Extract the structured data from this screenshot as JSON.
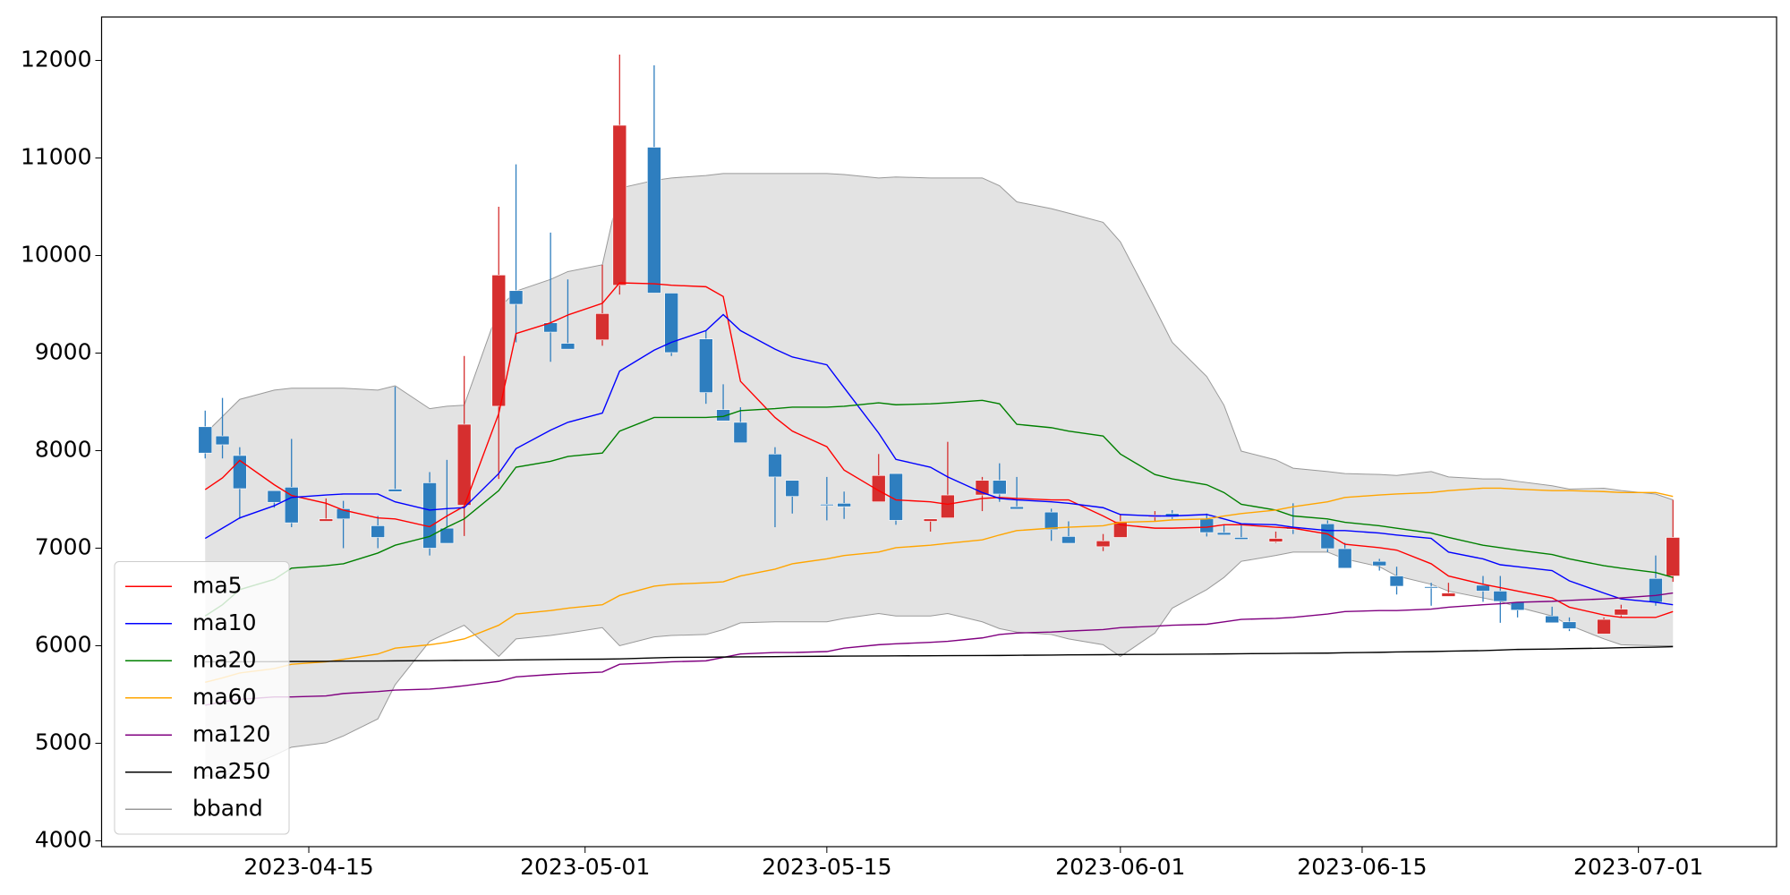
{
  "chart_data": {
    "type": "candlestick",
    "x": [
      "2023-04-09",
      "2023-04-10",
      "2023-04-11",
      "2023-04-13",
      "2023-04-14",
      "2023-04-16",
      "2023-04-17",
      "2023-04-19",
      "2023-04-20",
      "2023-04-22",
      "2023-04-23",
      "2023-04-24",
      "2023-04-26",
      "2023-04-27",
      "2023-04-29",
      "2023-04-30",
      "2023-05-02",
      "2023-05-03",
      "2023-05-05",
      "2023-05-06",
      "2023-05-08",
      "2023-05-09",
      "2023-05-10",
      "2023-05-12",
      "2023-05-13",
      "2023-05-15",
      "2023-05-16",
      "2023-05-18",
      "2023-05-19",
      "2023-05-21",
      "2023-05-22",
      "2023-05-24",
      "2023-05-25",
      "2023-05-26",
      "2023-05-28",
      "2023-05-29",
      "2023-05-31",
      "2023-06-01",
      "2023-06-03",
      "2023-06-04",
      "2023-06-06",
      "2023-06-07",
      "2023-06-08",
      "2023-06-10",
      "2023-06-11",
      "2023-06-13",
      "2023-06-14",
      "2023-06-16",
      "2023-06-17",
      "2023-06-19",
      "2023-06-20",
      "2023-06-22",
      "2023-06-23",
      "2023-06-24",
      "2023-06-26",
      "2023-06-27",
      "2023-06-29",
      "2023-06-30",
      "2023-07-02",
      "2023-07-03"
    ],
    "open": [
      8245,
      8150,
      7950,
      7590,
      7625,
      7275,
      7405,
      7230,
      7605,
      7670,
      7205,
      7440,
      8455,
      9640,
      9310,
      9100,
      9135,
      9695,
      11110,
      9615,
      9145,
      8420,
      8290,
      7965,
      7695,
      7450,
      7460,
      7475,
      7765,
      7275,
      7310,
      7545,
      7695,
      7425,
      7370,
      7120,
      7015,
      7110,
      7320,
      7355,
      7300,
      7160,
      7110,
      7065,
      7210,
      7250,
      6995,
      6865,
      6715,
      6605,
      6505,
      6620,
      6560,
      6445,
      6305,
      6245,
      6120,
      6315,
      6690,
      6715
    ],
    "high": [
      8410,
      8540,
      8035,
      7590,
      8120,
      7510,
      7485,
      7330,
      8655,
      7780,
      7905,
      8970,
      10500,
      10935,
      10235,
      9755,
      9905,
      12060,
      11950,
      9615,
      9230,
      8680,
      8445,
      8035,
      7695,
      7730,
      7580,
      7965,
      7765,
      7300,
      8090,
      7730,
      7870,
      7730,
      7405,
      7275,
      7145,
      7345,
      7380,
      7390,
      7355,
      7240,
      7240,
      7170,
      7460,
      7285,
      7055,
      6890,
      6810,
      6645,
      6645,
      6715,
      6715,
      6445,
      6400,
      6290,
      6290,
      6420,
      6925,
      7495
    ],
    "low": [
      7920,
      7920,
      7300,
      7415,
      7215,
      7275,
      7000,
      7000,
      7580,
      6925,
      7050,
      7125,
      7710,
      9110,
      8910,
      9040,
      9075,
      9600,
      9615,
      8970,
      8480,
      8305,
      8080,
      7215,
      7355,
      7285,
      7300,
      7475,
      7240,
      7170,
      7310,
      7380,
      7475,
      7400,
      7075,
      7050,
      6970,
      7110,
      7280,
      7300,
      7120,
      7135,
      7090,
      7055,
      7145,
      6960,
      6795,
      6770,
      6525,
      6410,
      6505,
      6450,
      6235,
      6290,
      6235,
      6150,
      6120,
      6290,
      6410,
      6655
    ],
    "close": [
      7975,
      8060,
      7610,
      7470,
      7260,
      7300,
      7300,
      7110,
      7580,
      7000,
      7050,
      8270,
      9800,
      9500,
      9215,
      9040,
      9405,
      11335,
      9615,
      9005,
      8595,
      8305,
      8080,
      7730,
      7530,
      7440,
      7425,
      7745,
      7285,
      7300,
      7545,
      7695,
      7555,
      7400,
      7190,
      7050,
      7075,
      7275,
      7340,
      7320,
      7160,
      7135,
      7090,
      7100,
      7195,
      6995,
      6795,
      6820,
      6610,
      6595,
      6540,
      6560,
      6455,
      6365,
      6235,
      6175,
      6270,
      6375,
      6445,
      7110
    ],
    "up_color": "#d62f2f",
    "down_color": "#2e7ebf",
    "series": [
      {
        "name": "ma5",
        "color": "#ff0000",
        "values": [
          7600,
          7720,
          7900,
          7650,
          7540,
          7460,
          7390,
          7310,
          7300,
          7220,
          7330,
          7430,
          8380,
          9200,
          9310,
          9390,
          9510,
          9720,
          9710,
          9695,
          9680,
          9580,
          8710,
          8340,
          8200,
          8040,
          7800,
          7590,
          7495,
          7475,
          7450,
          7510,
          7520,
          7510,
          7495,
          7495,
          7330,
          7240,
          7205,
          7205,
          7215,
          7240,
          7240,
          7215,
          7205,
          7145,
          7040,
          7005,
          6980,
          6840,
          6715,
          6630,
          6595,
          6560,
          6490,
          6395,
          6315,
          6290,
          6290,
          6350
        ]
      },
      {
        "name": "ma10",
        "color": "#0000ff",
        "values": [
          7100,
          7205,
          7310,
          7435,
          7520,
          7545,
          7555,
          7555,
          7475,
          7390,
          7405,
          7415,
          7765,
          8020,
          8210,
          8290,
          8385,
          8815,
          9030,
          9110,
          9230,
          9395,
          9230,
          9040,
          8960,
          8880,
          8645,
          8180,
          7910,
          7830,
          7730,
          7570,
          7510,
          7495,
          7475,
          7460,
          7415,
          7345,
          7330,
          7330,
          7345,
          7300,
          7250,
          7240,
          7215,
          7180,
          7180,
          7155,
          7135,
          7100,
          6960,
          6890,
          6830,
          6810,
          6770,
          6665,
          6540,
          6480,
          6445,
          6420
        ]
      },
      {
        "name": "ma20",
        "color": "#008000",
        "values": [
          6305,
          6420,
          6575,
          6680,
          6795,
          6820,
          6840,
          6950,
          7030,
          7120,
          7215,
          7300,
          7590,
          7830,
          7890,
          7940,
          7975,
          8200,
          8340,
          8340,
          8340,
          8350,
          8410,
          8430,
          8445,
          8445,
          8455,
          8490,
          8470,
          8480,
          8490,
          8515,
          8480,
          8270,
          8235,
          8200,
          8150,
          7965,
          7755,
          7710,
          7650,
          7570,
          7450,
          7390,
          7330,
          7300,
          7265,
          7230,
          7205,
          7155,
          7110,
          7030,
          7005,
          6980,
          6935,
          6890,
          6820,
          6795,
          6750,
          6700
        ]
      },
      {
        "name": "ma60",
        "color": "#ffa500",
        "values": [
          5625,
          5670,
          5720,
          5765,
          5810,
          5835,
          5860,
          5915,
          5975,
          6010,
          6035,
          6070,
          6210,
          6325,
          6360,
          6385,
          6420,
          6515,
          6610,
          6630,
          6645,
          6655,
          6715,
          6785,
          6840,
          6890,
          6925,
          6960,
          7005,
          7030,
          7050,
          7085,
          7135,
          7180,
          7205,
          7215,
          7230,
          7265,
          7275,
          7290,
          7300,
          7330,
          7355,
          7390,
          7425,
          7475,
          7520,
          7545,
          7555,
          7570,
          7590,
          7615,
          7615,
          7605,
          7590,
          7590,
          7580,
          7570,
          7570,
          7530
        ]
      },
      {
        "name": "ma120",
        "color": "#800080",
        "values": [
          5390,
          5425,
          5450,
          5475,
          5475,
          5485,
          5510,
          5530,
          5545,
          5555,
          5570,
          5590,
          5635,
          5680,
          5705,
          5715,
          5730,
          5810,
          5825,
          5835,
          5845,
          5880,
          5915,
          5930,
          5930,
          5940,
          5975,
          6010,
          6020,
          6035,
          6045,
          6080,
          6115,
          6130,
          6140,
          6150,
          6165,
          6185,
          6200,
          6210,
          6220,
          6245,
          6270,
          6280,
          6290,
          6325,
          6350,
          6360,
          6360,
          6375,
          6395,
          6420,
          6430,
          6445,
          6455,
          6465,
          6480,
          6490,
          6515,
          6540
        ]
      },
      {
        "name": "ma250",
        "color": "#000000",
        "values": [
          5835,
          5835,
          5835,
          5836,
          5838,
          5840,
          5842,
          5843,
          5845,
          5847,
          5849,
          5850,
          5852,
          5855,
          5858,
          5860,
          5862,
          5865,
          5875,
          5880,
          5882,
          5884,
          5886,
          5888,
          5890,
          5892,
          5894,
          5895,
          5896,
          5897,
          5898,
          5899,
          5900,
          5902,
          5904,
          5906,
          5908,
          5910,
          5911,
          5912,
          5914,
          5916,
          5918,
          5920,
          5922,
          5924,
          5928,
          5932,
          5936,
          5940,
          5944,
          5950,
          5956,
          5962,
          5966,
          5970,
          5975,
          5980,
          5985,
          5990
        ]
      },
      {
        "name": "bband",
        "color": "#999999",
        "fill": "#e3e3e3",
        "upper": [
          8175,
          8350,
          8525,
          8620,
          8640,
          8640,
          8640,
          8620,
          8665,
          8430,
          8455,
          8465,
          9460,
          9635,
          9755,
          9835,
          9905,
          10690,
          10770,
          10795,
          10820,
          10840,
          10840,
          10840,
          10840,
          10840,
          10830,
          10795,
          10805,
          10795,
          10795,
          10795,
          10715,
          10550,
          10480,
          10435,
          10340,
          10140,
          9460,
          9110,
          8760,
          8465,
          7995,
          7905,
          7820,
          7785,
          7765,
          7755,
          7745,
          7785,
          7730,
          7710,
          7710,
          7685,
          7640,
          7605,
          7615,
          7590,
          7555,
          7495
        ],
        "lower": [
          4665,
          4665,
          4725,
          4875,
          4960,
          5005,
          5075,
          5250,
          5600,
          6045,
          6130,
          6210,
          5890,
          6070,
          6105,
          6130,
          6185,
          6000,
          6090,
          6105,
          6115,
          6165,
          6235,
          6245,
          6245,
          6245,
          6280,
          6330,
          6305,
          6305,
          6330,
          6245,
          6175,
          6140,
          6115,
          6070,
          6010,
          5890,
          6130,
          6385,
          6575,
          6700,
          6865,
          6925,
          6960,
          6960,
          6890,
          6810,
          6715,
          6630,
          6560,
          6490,
          6455,
          6395,
          6305,
          6210,
          6070,
          6010,
          6000,
          6000
        ]
      }
    ],
    "xlim": [
      "2023-04-03",
      "2023-07-09"
    ],
    "ylim": [
      3940,
      12445
    ],
    "xticks": [
      "2023-04-15",
      "2023-05-01",
      "2023-05-15",
      "2023-06-01",
      "2023-06-15",
      "2023-07-01"
    ],
    "yticks": [
      4000,
      5000,
      6000,
      7000,
      8000,
      9000,
      10000,
      11000,
      12000
    ],
    "legend": "lower left"
  }
}
